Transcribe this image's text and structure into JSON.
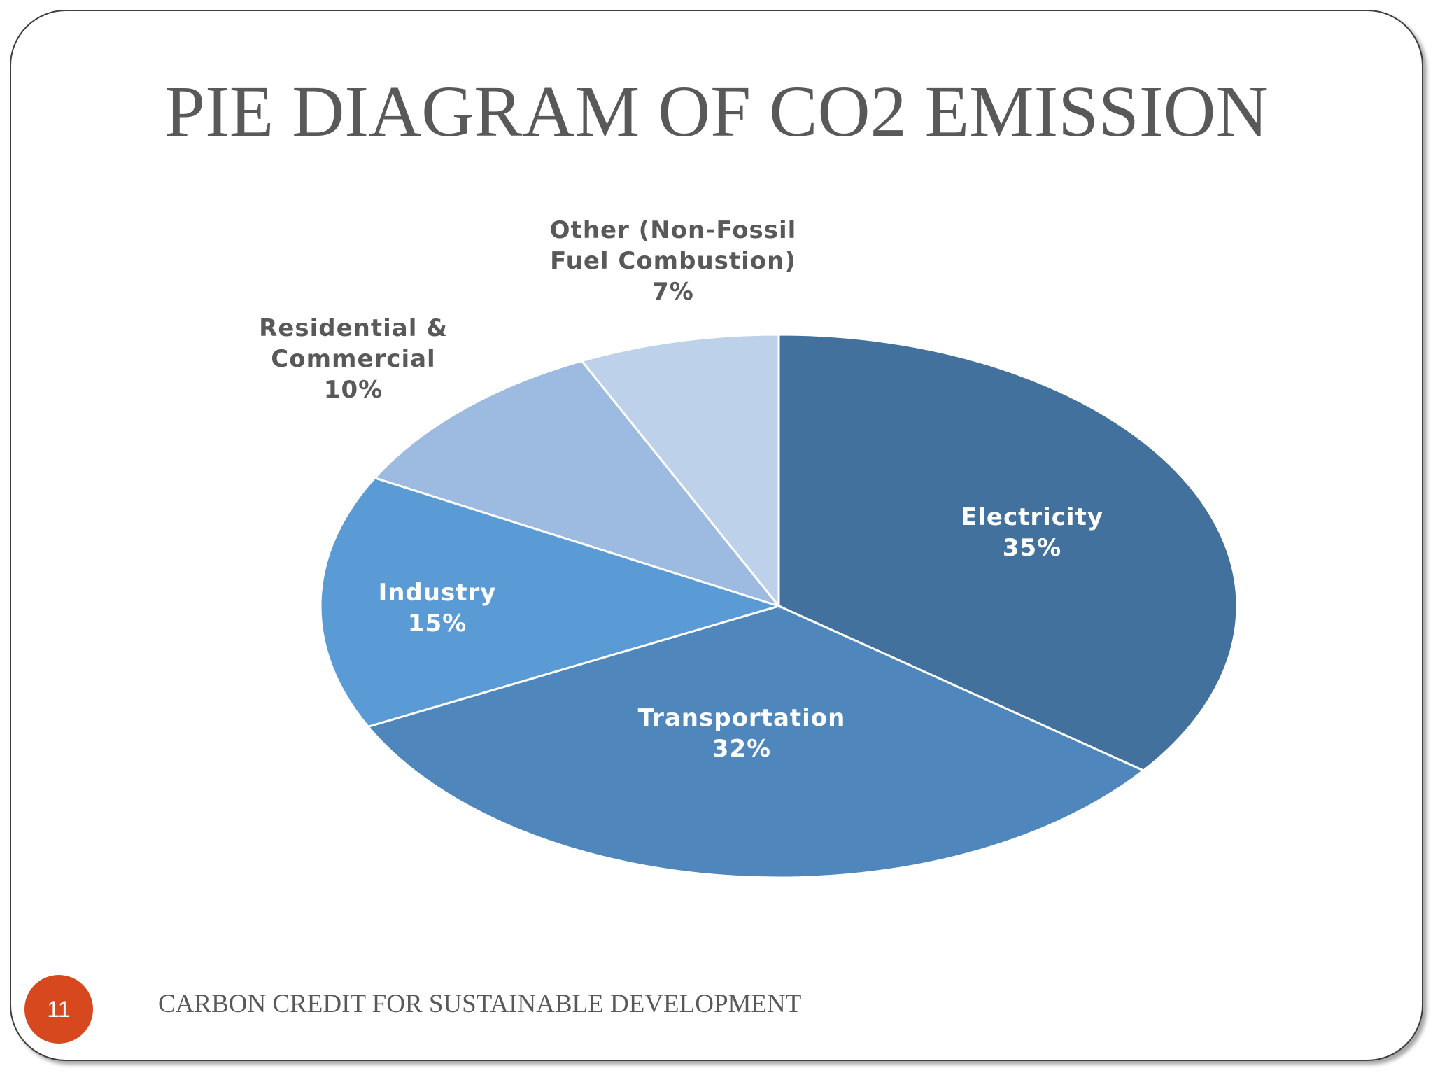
{
  "slide": {
    "title": "PIE DIAGRAM OF CO2 EMISSION",
    "footer": "CARBON CREDIT FOR SUSTAINABLE DEVELOPMENT",
    "page_number": "11",
    "badge_color": "#d8481f"
  },
  "chart_data": {
    "type": "pie",
    "title": "",
    "start_angle_deg": 0,
    "direction": "clockwise",
    "slices": [
      {
        "label": [
          "Electricity"
        ],
        "value_label": "35%",
        "value": 35,
        "color": "#41719c",
        "text_color": "#ffffff"
      },
      {
        "label": [
          "Transportation"
        ],
        "value_label": "32%",
        "value": 32,
        "color": "#4f87bd",
        "text_color": "#ffffff"
      },
      {
        "label": [
          "Industry"
        ],
        "value_label": "15%",
        "value": 15,
        "color": "#5b9bd5",
        "text_color": "#ffffff"
      },
      {
        "label": [
          "Residential &",
          "Commercial"
        ],
        "value_label": "10%",
        "value": 10,
        "color": "#9dbbe0",
        "text_color": "#595959"
      },
      {
        "label": [
          "Other (Non-Fossil",
          "Fuel Combustion)"
        ],
        "value_label": "7%",
        "value": 7,
        "color": "#bdd1ea",
        "text_color": "#595959"
      }
    ]
  }
}
